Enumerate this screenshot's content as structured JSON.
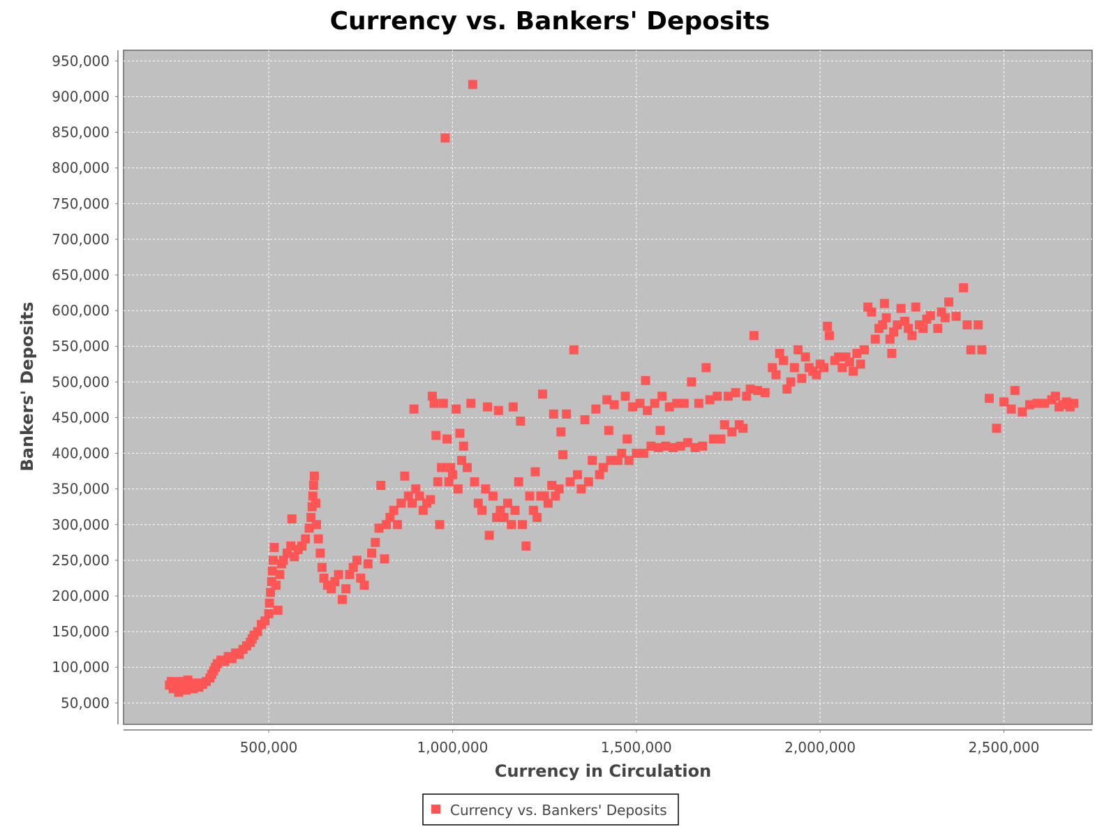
{
  "chart_data": {
    "type": "scatter",
    "title": "Currency vs. Bankers' Deposits",
    "xlabel": "Currency in Circulation",
    "ylabel": "Bankers' Deposits",
    "xlim": [
      105000,
      2740000
    ],
    "ylim": [
      20000,
      965000
    ],
    "x_ticks": [
      500000,
      1000000,
      1500000,
      2000000,
      2500000
    ],
    "x_tick_labels": [
      "500,000",
      "1,000,000",
      "1,500,000",
      "2,000,000",
      "2,500,000"
    ],
    "y_ticks": [
      50000,
      100000,
      150000,
      200000,
      250000,
      300000,
      350000,
      400000,
      450000,
      500000,
      550000,
      600000,
      650000,
      700000,
      750000,
      800000,
      850000,
      900000,
      950000
    ],
    "y_tick_labels": [
      "50,000",
      "100,000",
      "150,000",
      "200,000",
      "250,000",
      "300,000",
      "350,000",
      "400,000",
      "450,000",
      "500,000",
      "550,000",
      "600,000",
      "650,000",
      "700,000",
      "750,000",
      "800,000",
      "850,000",
      "900,000",
      "950,000"
    ],
    "grid": true,
    "legend_position": "bottom-center",
    "colors": {
      "plot_background": "#c0c0c0",
      "marker": "#ff5555",
      "grid": "#ffffff"
    },
    "series": [
      {
        "name": "Currency vs. Bankers' Deposits",
        "points": [
          [
            230000,
            75000
          ],
          [
            235000,
            80000
          ],
          [
            240000,
            70000
          ],
          [
            245000,
            78000
          ],
          [
            250000,
            72000
          ],
          [
            255000,
            65000
          ],
          [
            260000,
            80000
          ],
          [
            265000,
            70000
          ],
          [
            270000,
            75000
          ],
          [
            275000,
            68000
          ],
          [
            280000,
            82000
          ],
          [
            285000,
            72000
          ],
          [
            290000,
            76000
          ],
          [
            295000,
            70000
          ],
          [
            300000,
            74000
          ],
          [
            305000,
            78000
          ],
          [
            310000,
            72000
          ],
          [
            320000,
            76000
          ],
          [
            330000,
            80000
          ],
          [
            340000,
            85000
          ],
          [
            345000,
            90000
          ],
          [
            350000,
            95000
          ],
          [
            355000,
            100000
          ],
          [
            360000,
            105000
          ],
          [
            370000,
            110000
          ],
          [
            380000,
            108000
          ],
          [
            390000,
            115000
          ],
          [
            400000,
            112000
          ],
          [
            410000,
            120000
          ],
          [
            420000,
            118000
          ],
          [
            430000,
            125000
          ],
          [
            440000,
            130000
          ],
          [
            450000,
            135000
          ],
          [
            455000,
            140000
          ],
          [
            460000,
            145000
          ],
          [
            470000,
            150000
          ],
          [
            480000,
            160000
          ],
          [
            490000,
            165000
          ],
          [
            500000,
            175000
          ],
          [
            502000,
            190000
          ],
          [
            505000,
            205000
          ],
          [
            508000,
            220000
          ],
          [
            510000,
            235000
          ],
          [
            512000,
            250000
          ],
          [
            515000,
            268000
          ],
          [
            520000,
            215000
          ],
          [
            525000,
            180000
          ],
          [
            530000,
            230000
          ],
          [
            535000,
            245000
          ],
          [
            540000,
            250000
          ],
          [
            550000,
            260000
          ],
          [
            560000,
            270000
          ],
          [
            563000,
            308000
          ],
          [
            570000,
            255000
          ],
          [
            580000,
            265000
          ],
          [
            590000,
            270000
          ],
          [
            600000,
            280000
          ],
          [
            610000,
            295000
          ],
          [
            615000,
            310000
          ],
          [
            618000,
            325000
          ],
          [
            620000,
            340000
          ],
          [
            622000,
            355000
          ],
          [
            624000,
            368000
          ],
          [
            628000,
            330000
          ],
          [
            630000,
            300000
          ],
          [
            635000,
            280000
          ],
          [
            640000,
            260000
          ],
          [
            645000,
            240000
          ],
          [
            650000,
            225000
          ],
          [
            660000,
            215000
          ],
          [
            670000,
            210000
          ],
          [
            680000,
            220000
          ],
          [
            690000,
            230000
          ],
          [
            700000,
            195000
          ],
          [
            710000,
            210000
          ],
          [
            720000,
            230000
          ],
          [
            730000,
            240000
          ],
          [
            740000,
            250000
          ],
          [
            750000,
            225000
          ],
          [
            760000,
            215000
          ],
          [
            770000,
            245000
          ],
          [
            780000,
            260000
          ],
          [
            790000,
            275000
          ],
          [
            800000,
            295000
          ],
          [
            805000,
            355000
          ],
          [
            815000,
            252000
          ],
          [
            820000,
            300000
          ],
          [
            830000,
            310000
          ],
          [
            840000,
            320000
          ],
          [
            850000,
            300000
          ],
          [
            860000,
            330000
          ],
          [
            870000,
            368000
          ],
          [
            880000,
            340000
          ],
          [
            890000,
            330000
          ],
          [
            895000,
            462000
          ],
          [
            900000,
            350000
          ],
          [
            910000,
            340000
          ],
          [
            920000,
            320000
          ],
          [
            930000,
            330000
          ],
          [
            940000,
            335000
          ],
          [
            945000,
            480000
          ],
          [
            950000,
            470000
          ],
          [
            955000,
            425000
          ],
          [
            960000,
            360000
          ],
          [
            965000,
            300000
          ],
          [
            970000,
            380000
          ],
          [
            975000,
            470000
          ],
          [
            980000,
            842000
          ],
          [
            985000,
            420000
          ],
          [
            990000,
            360000
          ],
          [
            995000,
            380000
          ],
          [
            1000000,
            370000
          ],
          [
            1010000,
            462000
          ],
          [
            1015000,
            350000
          ],
          [
            1020000,
            428000
          ],
          [
            1025000,
            390000
          ],
          [
            1030000,
            410000
          ],
          [
            1040000,
            380000
          ],
          [
            1050000,
            470000
          ],
          [
            1055000,
            917000
          ],
          [
            1060000,
            360000
          ],
          [
            1070000,
            330000
          ],
          [
            1080000,
            320000
          ],
          [
            1090000,
            350000
          ],
          [
            1095000,
            465000
          ],
          [
            1100000,
            285000
          ],
          [
            1110000,
            340000
          ],
          [
            1120000,
            310000
          ],
          [
            1125000,
            460000
          ],
          [
            1130000,
            320000
          ],
          [
            1140000,
            310000
          ],
          [
            1150000,
            330000
          ],
          [
            1160000,
            300000
          ],
          [
            1165000,
            465000
          ],
          [
            1170000,
            320000
          ],
          [
            1180000,
            360000
          ],
          [
            1185000,
            445000
          ],
          [
            1190000,
            300000
          ],
          [
            1200000,
            270000
          ],
          [
            1210000,
            340000
          ],
          [
            1220000,
            320000
          ],
          [
            1225000,
            374000
          ],
          [
            1230000,
            310000
          ],
          [
            1240000,
            340000
          ],
          [
            1245000,
            483000
          ],
          [
            1250000,
            340000
          ],
          [
            1260000,
            330000
          ],
          [
            1270000,
            355000
          ],
          [
            1275000,
            455000
          ],
          [
            1280000,
            340000
          ],
          [
            1290000,
            350000
          ],
          [
            1295000,
            430000
          ],
          [
            1300000,
            398000
          ],
          [
            1310000,
            455000
          ],
          [
            1320000,
            360000
          ],
          [
            1330000,
            545000
          ],
          [
            1340000,
            370000
          ],
          [
            1350000,
            350000
          ],
          [
            1360000,
            447000
          ],
          [
            1370000,
            360000
          ],
          [
            1380000,
            390000
          ],
          [
            1390000,
            462000
          ],
          [
            1400000,
            370000
          ],
          [
            1410000,
            380000
          ],
          [
            1420000,
            475000
          ],
          [
            1425000,
            432000
          ],
          [
            1430000,
            390000
          ],
          [
            1440000,
            468000
          ],
          [
            1450000,
            390000
          ],
          [
            1460000,
            400000
          ],
          [
            1470000,
            480000
          ],
          [
            1475000,
            420000
          ],
          [
            1480000,
            390000
          ],
          [
            1490000,
            465000
          ],
          [
            1500000,
            400000
          ],
          [
            1510000,
            470000
          ],
          [
            1520000,
            400000
          ],
          [
            1525000,
            502000
          ],
          [
            1530000,
            460000
          ],
          [
            1540000,
            410000
          ],
          [
            1550000,
            470000
          ],
          [
            1560000,
            408000
          ],
          [
            1565000,
            432000
          ],
          [
            1570000,
            480000
          ],
          [
            1580000,
            410000
          ],
          [
            1590000,
            465000
          ],
          [
            1600000,
            408000
          ],
          [
            1610000,
            470000
          ],
          [
            1620000,
            410000
          ],
          [
            1630000,
            470000
          ],
          [
            1640000,
            415000
          ],
          [
            1650000,
            500000
          ],
          [
            1660000,
            408000
          ],
          [
            1670000,
            470000
          ],
          [
            1680000,
            410000
          ],
          [
            1690000,
            520000
          ],
          [
            1700000,
            475000
          ],
          [
            1710000,
            420000
          ],
          [
            1720000,
            480000
          ],
          [
            1730000,
            420000
          ],
          [
            1740000,
            440000
          ],
          [
            1750000,
            480000
          ],
          [
            1760000,
            430000
          ],
          [
            1770000,
            485000
          ],
          [
            1780000,
            440000
          ],
          [
            1790000,
            435000
          ],
          [
            1800000,
            480000
          ],
          [
            1810000,
            490000
          ],
          [
            1820000,
            565000
          ],
          [
            1830000,
            488000
          ],
          [
            1850000,
            485000
          ],
          [
            1870000,
            520000
          ],
          [
            1880000,
            510000
          ],
          [
            1890000,
            540000
          ],
          [
            1900000,
            530000
          ],
          [
            1910000,
            490000
          ],
          [
            1920000,
            500000
          ],
          [
            1930000,
            520000
          ],
          [
            1940000,
            545000
          ],
          [
            1950000,
            505000
          ],
          [
            1960000,
            535000
          ],
          [
            1970000,
            520000
          ],
          [
            1980000,
            515000
          ],
          [
            1990000,
            510000
          ],
          [
            2000000,
            525000
          ],
          [
            2010000,
            520000
          ],
          [
            2020000,
            578000
          ],
          [
            2025000,
            565000
          ],
          [
            2040000,
            530000
          ],
          [
            2050000,
            535000
          ],
          [
            2060000,
            520000
          ],
          [
            2070000,
            535000
          ],
          [
            2080000,
            528000
          ],
          [
            2090000,
            515000
          ],
          [
            2100000,
            540000
          ],
          [
            2110000,
            525000
          ],
          [
            2120000,
            545000
          ],
          [
            2130000,
            605000
          ],
          [
            2140000,
            598000
          ],
          [
            2150000,
            560000
          ],
          [
            2160000,
            575000
          ],
          [
            2170000,
            580000
          ],
          [
            2175000,
            610000
          ],
          [
            2180000,
            590000
          ],
          [
            2190000,
            560000
          ],
          [
            2195000,
            540000
          ],
          [
            2200000,
            570000
          ],
          [
            2210000,
            580000
          ],
          [
            2220000,
            603000
          ],
          [
            2230000,
            585000
          ],
          [
            2240000,
            575000
          ],
          [
            2250000,
            565000
          ],
          [
            2260000,
            605000
          ],
          [
            2270000,
            580000
          ],
          [
            2280000,
            575000
          ],
          [
            2290000,
            588000
          ],
          [
            2300000,
            593000
          ],
          [
            2320000,
            575000
          ],
          [
            2330000,
            598000
          ],
          [
            2340000,
            590000
          ],
          [
            2350000,
            612000
          ],
          [
            2370000,
            592000
          ],
          [
            2390000,
            632000
          ],
          [
            2400000,
            580000
          ],
          [
            2410000,
            545000
          ],
          [
            2430000,
            580000
          ],
          [
            2440000,
            545000
          ],
          [
            2460000,
            477000
          ],
          [
            2480000,
            435000
          ],
          [
            2500000,
            472000
          ],
          [
            2520000,
            462000
          ],
          [
            2530000,
            488000
          ],
          [
            2550000,
            458000
          ],
          [
            2570000,
            468000
          ],
          [
            2590000,
            470000
          ],
          [
            2610000,
            470000
          ],
          [
            2630000,
            475000
          ],
          [
            2640000,
            480000
          ],
          [
            2650000,
            465000
          ],
          [
            2660000,
            468000
          ],
          [
            2670000,
            472000
          ],
          [
            2680000,
            465000
          ],
          [
            2690000,
            470000
          ]
        ]
      }
    ]
  }
}
